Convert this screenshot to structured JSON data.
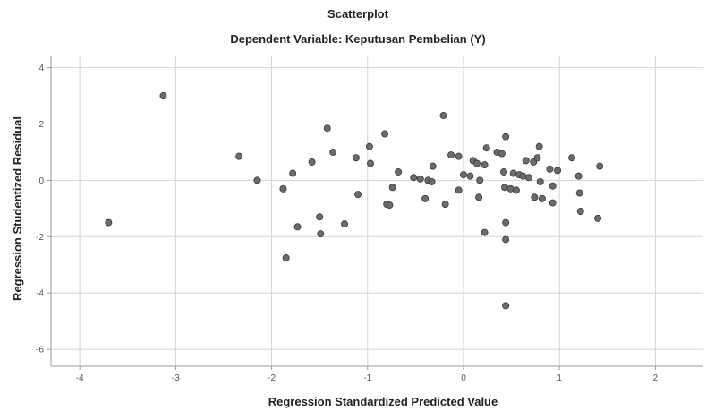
{
  "chart_data": {
    "type": "scatter",
    "title": "Scatterplot",
    "subtitle": "Dependent Variable: Keputusan Pembelian (Y)",
    "xlabel": "Regression Standardized Predicted Value",
    "ylabel": "Regression Studentized Residual",
    "xlim": [
      -4.3,
      2.5
    ],
    "ylim": [
      -6.6,
      4.4
    ],
    "xticks": [
      -4,
      -3,
      -2,
      -1,
      0,
      1,
      2
    ],
    "yticks": [
      4,
      2,
      0,
      -2,
      -4,
      -6
    ],
    "grid": true,
    "colors": {
      "point_fill": "#6b6b6b",
      "point_stroke": "#3a3a3a",
      "grid": "#d4d4d4",
      "axis": "#9a9a9a"
    },
    "points": [
      {
        "x": -3.7,
        "y": -1.5
      },
      {
        "x": -3.13,
        "y": 3.0
      },
      {
        "x": -2.34,
        "y": 0.85
      },
      {
        "x": -2.15,
        "y": 0.0
      },
      {
        "x": -1.88,
        "y": -0.3
      },
      {
        "x": -1.85,
        "y": -2.75
      },
      {
        "x": -1.78,
        "y": 0.25
      },
      {
        "x": -1.73,
        "y": -1.65
      },
      {
        "x": -1.58,
        "y": 0.65
      },
      {
        "x": -1.5,
        "y": -1.3
      },
      {
        "x": -1.49,
        "y": -1.9
      },
      {
        "x": -1.42,
        "y": 1.85
      },
      {
        "x": -1.36,
        "y": 1.0
      },
      {
        "x": -1.24,
        "y": -1.55
      },
      {
        "x": -1.12,
        "y": 0.8
      },
      {
        "x": -1.1,
        "y": -0.5
      },
      {
        "x": -0.98,
        "y": 1.2
      },
      {
        "x": -0.97,
        "y": 0.6
      },
      {
        "x": -0.82,
        "y": 1.65
      },
      {
        "x": -0.8,
        "y": -0.85
      },
      {
        "x": -0.77,
        "y": -0.88
      },
      {
        "x": -0.74,
        "y": -0.25
      },
      {
        "x": -0.68,
        "y": 0.3
      },
      {
        "x": -0.52,
        "y": 0.1
      },
      {
        "x": -0.45,
        "y": 0.05
      },
      {
        "x": -0.4,
        "y": -0.65
      },
      {
        "x": -0.37,
        "y": 0.0
      },
      {
        "x": -0.33,
        "y": -0.05
      },
      {
        "x": -0.32,
        "y": 0.5
      },
      {
        "x": -0.21,
        "y": 2.3
      },
      {
        "x": -0.19,
        "y": -0.85
      },
      {
        "x": -0.13,
        "y": 0.9
      },
      {
        "x": -0.05,
        "y": 0.85
      },
      {
        "x": -0.05,
        "y": -0.35
      },
      {
        "x": 0.0,
        "y": 0.2
      },
      {
        "x": 0.07,
        "y": 0.15
      },
      {
        "x": 0.1,
        "y": 0.7
      },
      {
        "x": 0.14,
        "y": 0.6
      },
      {
        "x": 0.16,
        "y": -0.6
      },
      {
        "x": 0.17,
        "y": 0.0
      },
      {
        "x": 0.22,
        "y": 0.55
      },
      {
        "x": 0.22,
        "y": -1.85
      },
      {
        "x": 0.24,
        "y": 1.15
      },
      {
        "x": 0.35,
        "y": 1.0
      },
      {
        "x": 0.4,
        "y": 0.95
      },
      {
        "x": 0.42,
        "y": 0.3
      },
      {
        "x": 0.43,
        "y": -0.25
      },
      {
        "x": 0.44,
        "y": 1.55
      },
      {
        "x": 0.44,
        "y": -1.5
      },
      {
        "x": 0.44,
        "y": -2.1
      },
      {
        "x": 0.44,
        "y": -4.45
      },
      {
        "x": 0.49,
        "y": -0.3
      },
      {
        "x": 0.52,
        "y": 0.25
      },
      {
        "x": 0.55,
        "y": -0.35
      },
      {
        "x": 0.58,
        "y": 0.2
      },
      {
        "x": 0.62,
        "y": 0.15
      },
      {
        "x": 0.65,
        "y": 0.7
      },
      {
        "x": 0.68,
        "y": 0.1
      },
      {
        "x": 0.73,
        "y": 0.65
      },
      {
        "x": 0.74,
        "y": -0.6
      },
      {
        "x": 0.77,
        "y": 0.8
      },
      {
        "x": 0.79,
        "y": 1.2
      },
      {
        "x": 0.8,
        "y": -0.05
      },
      {
        "x": 0.82,
        "y": -0.65
      },
      {
        "x": 0.9,
        "y": 0.4
      },
      {
        "x": 0.93,
        "y": -0.2
      },
      {
        "x": 0.93,
        "y": -0.8
      },
      {
        "x": 0.98,
        "y": 0.35
      },
      {
        "x": 1.13,
        "y": 0.8
      },
      {
        "x": 1.2,
        "y": 0.15
      },
      {
        "x": 1.21,
        "y": -0.45
      },
      {
        "x": 1.22,
        "y": -1.1
      },
      {
        "x": 1.4,
        "y": -1.35
      },
      {
        "x": 1.42,
        "y": 0.5
      }
    ]
  }
}
